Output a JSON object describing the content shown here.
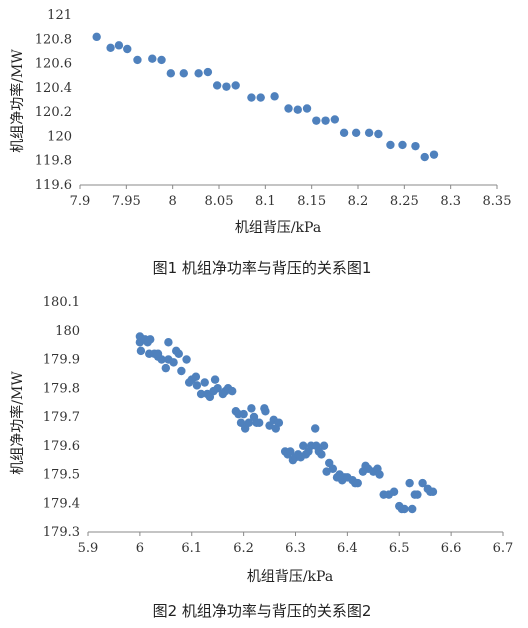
{
  "accent_color": "#4F81BD",
  "chart_data": [
    {
      "type": "scatter",
      "caption": "图1   机组净功率与背压的关系图1",
      "xlabel": "机组背压/kPa",
      "ylabel": "机组净功率/MW",
      "xlim": [
        7.9,
        8.35
      ],
      "ylim": [
        119.6,
        121
      ],
      "xticks": [
        7.9,
        7.95,
        8,
        8.05,
        8.1,
        8.15,
        8.2,
        8.25,
        8.3,
        8.35
      ],
      "xtick_labels": [
        "7.9",
        "7.95",
        "8",
        "8.05",
        "8.1",
        "8.15",
        "8.2",
        "8.25",
        "8.3",
        "8.35"
      ],
      "yticks": [
        119.6,
        119.8,
        120,
        120.2,
        120.4,
        120.6,
        120.8,
        121
      ],
      "ytick_labels": [
        "119.6",
        "119.8",
        "120",
        "120.2",
        "120.4",
        "120.6",
        "120.8",
        "121"
      ],
      "grid": false,
      "marker_color": "#4F81BD",
      "points": [
        [
          7.918,
          120.82
        ],
        [
          7.933,
          120.73
        ],
        [
          7.942,
          120.75
        ],
        [
          7.951,
          120.72
        ],
        [
          7.962,
          120.63
        ],
        [
          7.978,
          120.64
        ],
        [
          7.988,
          120.63
        ],
        [
          7.998,
          120.52
        ],
        [
          8.012,
          120.52
        ],
        [
          8.028,
          120.52
        ],
        [
          8.038,
          120.53
        ],
        [
          8.048,
          120.42
        ],
        [
          8.058,
          120.41
        ],
        [
          8.068,
          120.42
        ],
        [
          8.085,
          120.32
        ],
        [
          8.095,
          120.32
        ],
        [
          8.11,
          120.33
        ],
        [
          8.125,
          120.23
        ],
        [
          8.135,
          120.22
        ],
        [
          8.145,
          120.23
        ],
        [
          8.155,
          120.13
        ],
        [
          8.165,
          120.13
        ],
        [
          8.175,
          120.14
        ],
        [
          8.185,
          120.03
        ],
        [
          8.198,
          120.03
        ],
        [
          8.212,
          120.03
        ],
        [
          8.222,
          120.02
        ],
        [
          8.235,
          119.93
        ],
        [
          8.248,
          119.93
        ],
        [
          8.262,
          119.92
        ],
        [
          8.272,
          119.83
        ],
        [
          8.282,
          119.85
        ]
      ]
    },
    {
      "type": "scatter",
      "caption": "图2   机组净功率与背压的关系图2",
      "xlabel": "机组背压/kPa",
      "ylabel": "机组净功率/MW",
      "xlim": [
        5.9,
        6.7
      ],
      "ylim": [
        179.3,
        180.1
      ],
      "xticks": [
        5.9,
        6,
        6.1,
        6.2,
        6.3,
        6.4,
        6.5,
        6.6,
        6.7
      ],
      "xtick_labels": [
        "5.9",
        "6",
        "6.1",
        "6.2",
        "6.3",
        "6.4",
        "6.5",
        "6.6",
        "6.7"
      ],
      "yticks": [
        179.3,
        179.4,
        179.5,
        179.6,
        179.7,
        179.8,
        179.9,
        180,
        180.1
      ],
      "ytick_labels": [
        "179.3",
        "179.4",
        "179.5",
        "179.6",
        "179.7",
        "179.8",
        "179.9",
        "180",
        "180.1"
      ],
      "grid": false,
      "marker_color": "#4F81BD",
      "points": [
        [
          6.0,
          179.98
        ],
        [
          6.0,
          179.96
        ],
        [
          6.005,
          179.97
        ],
        [
          6.01,
          179.97
        ],
        [
          6.015,
          179.96
        ],
        [
          6.02,
          179.97
        ],
        [
          6.002,
          179.93
        ],
        [
          6.018,
          179.92
        ],
        [
          6.028,
          179.92
        ],
        [
          6.035,
          179.91
        ],
        [
          6.042,
          179.9
        ],
        [
          6.035,
          179.92
        ],
        [
          6.055,
          179.96
        ],
        [
          6.055,
          179.9
        ],
        [
          6.05,
          179.87
        ],
        [
          6.07,
          179.93
        ],
        [
          6.075,
          179.92
        ],
        [
          6.065,
          179.89
        ],
        [
          6.09,
          179.9
        ],
        [
          6.08,
          179.86
        ],
        [
          6.095,
          179.82
        ],
        [
          6.1,
          179.83
        ],
        [
          6.108,
          179.84
        ],
        [
          6.11,
          179.81
        ],
        [
          6.118,
          179.78
        ],
        [
          6.125,
          179.82
        ],
        [
          6.13,
          179.78
        ],
        [
          6.135,
          179.77
        ],
        [
          6.142,
          179.79
        ],
        [
          6.145,
          179.83
        ],
        [
          6.15,
          179.8
        ],
        [
          6.16,
          179.78
        ],
        [
          6.165,
          179.79
        ],
        [
          6.17,
          179.8
        ],
        [
          6.178,
          179.79
        ],
        [
          6.185,
          179.72
        ],
        [
          6.19,
          179.71
        ],
        [
          6.195,
          179.68
        ],
        [
          6.2,
          179.71
        ],
        [
          6.203,
          179.66
        ],
        [
          6.21,
          179.68
        ],
        [
          6.215,
          179.73
        ],
        [
          6.22,
          179.7
        ],
        [
          6.225,
          179.68
        ],
        [
          6.23,
          179.68
        ],
        [
          6.24,
          179.73
        ],
        [
          6.242,
          179.72
        ],
        [
          6.25,
          179.67
        ],
        [
          6.258,
          179.69
        ],
        [
          6.262,
          179.66
        ],
        [
          6.268,
          179.68
        ],
        [
          6.28,
          179.58
        ],
        [
          6.285,
          179.57
        ],
        [
          6.29,
          179.58
        ],
        [
          6.295,
          179.55
        ],
        [
          6.3,
          179.56
        ],
        [
          6.305,
          179.57
        ],
        [
          6.31,
          179.56
        ],
        [
          6.315,
          179.6
        ],
        [
          6.32,
          179.57
        ],
        [
          6.325,
          179.58
        ],
        [
          6.33,
          179.6
        ],
        [
          6.338,
          179.66
        ],
        [
          6.34,
          179.6
        ],
        [
          6.345,
          179.58
        ],
        [
          6.35,
          179.57
        ],
        [
          6.355,
          179.6
        ],
        [
          6.36,
          179.51
        ],
        [
          6.365,
          179.54
        ],
        [
          6.372,
          179.52
        ],
        [
          6.38,
          179.49
        ],
        [
          6.385,
          179.5
        ],
        [
          6.39,
          179.48
        ],
        [
          6.395,
          179.49
        ],
        [
          6.4,
          179.49
        ],
        [
          6.41,
          179.48
        ],
        [
          6.415,
          179.47
        ],
        [
          6.42,
          179.47
        ],
        [
          6.43,
          179.51
        ],
        [
          6.435,
          179.53
        ],
        [
          6.44,
          179.52
        ],
        [
          6.45,
          179.51
        ],
        [
          6.458,
          179.52
        ],
        [
          6.462,
          179.5
        ],
        [
          6.47,
          179.43
        ],
        [
          6.48,
          179.43
        ],
        [
          6.49,
          179.44
        ],
        [
          6.5,
          179.39
        ],
        [
          6.505,
          179.38
        ],
        [
          6.51,
          179.38
        ],
        [
          6.52,
          179.47
        ],
        [
          6.525,
          179.38
        ],
        [
          6.53,
          179.43
        ],
        [
          6.535,
          179.43
        ],
        [
          6.545,
          179.47
        ],
        [
          6.555,
          179.45
        ],
        [
          6.56,
          179.44
        ],
        [
          6.565,
          179.44
        ]
      ]
    }
  ]
}
